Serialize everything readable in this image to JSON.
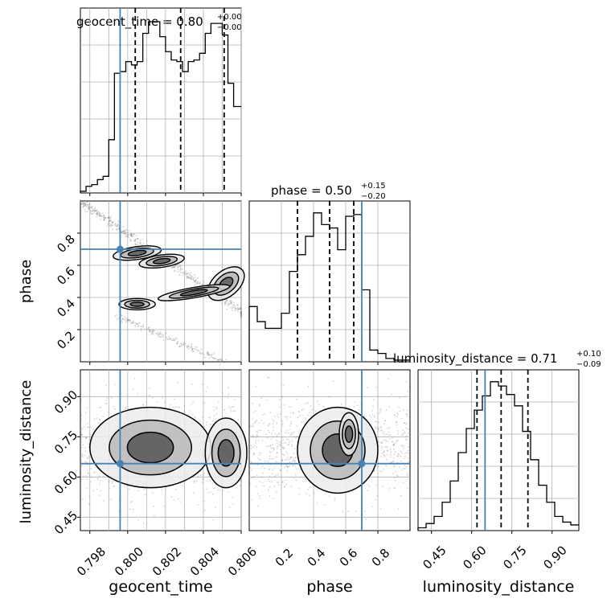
{
  "figure": {
    "kind": "corner-plot"
  },
  "chart_data": [
    {
      "id": "geocent_time_hist",
      "type": "histogram",
      "title_param": "geocent_time",
      "title_value": "0.80",
      "title_plus": "+0.00",
      "title_minus": "−0.00",
      "xlim": [
        0.7975,
        0.806
      ],
      "x": [
        0.7975,
        0.7978,
        0.7981,
        0.7984,
        0.7987,
        0.799,
        0.7993,
        0.7996,
        0.7999,
        0.8002,
        0.8005,
        0.8008,
        0.8011,
        0.8014,
        0.8017,
        0.802,
        0.8023,
        0.8026,
        0.8029,
        0.8032,
        0.8035,
        0.8038,
        0.8041,
        0.8044,
        0.8047,
        0.805,
        0.8053,
        0.8056,
        0.806
      ],
      "counts": [
        1,
        4,
        5,
        8,
        10,
        32,
        72,
        73,
        79,
        77,
        79,
        96,
        103,
        103,
        94,
        85,
        80,
        79,
        73,
        79,
        80,
        84,
        96,
        102,
        102,
        95,
        66,
        52
      ],
      "quantile_lines": [
        0.8004,
        0.8028,
        0.8051
      ],
      "truth": 0.7996,
      "grid": true
    },
    {
      "id": "phase_geocent_2d",
      "type": "2d-density-contour",
      "x_param": "geocent_time",
      "y_param": "phase",
      "xlim": [
        0.7975,
        0.806
      ],
      "ylim": [
        0.0,
        1.0
      ],
      "y_ticks": [
        "0.2",
        "0.4",
        "0.6",
        "0.8"
      ],
      "truth": {
        "x": 0.7996,
        "y": 0.7
      },
      "blobs": [
        {
          "x": 0.8005,
          "y": 0.676,
          "rx": 0.0008,
          "ry": 0.025,
          "rot": -8
        },
        {
          "x": 0.8018,
          "y": 0.626,
          "rx": 0.00075,
          "ry": 0.024,
          "rot": -8
        },
        {
          "x": 0.8052,
          "y": 0.486,
          "rx": 0.0007,
          "ry": 0.05,
          "rot": -40
        },
        {
          "x": 0.8005,
          "y": 0.358,
          "rx": 0.0006,
          "ry": 0.022,
          "rot": 0
        },
        {
          "x": 0.8035,
          "y": 0.43,
          "rx": 0.0012,
          "ry": 0.02,
          "rot": -10
        }
      ],
      "grid": true
    },
    {
      "id": "phase_hist",
      "type": "histogram",
      "title_param": "phase",
      "title_value": "0.50",
      "title_plus": "+0.15",
      "title_minus": "−0.20",
      "xlim": [
        0.0,
        1.0
      ],
      "x": [
        0.0,
        0.05,
        0.1,
        0.15,
        0.2,
        0.25,
        0.3,
        0.35,
        0.4,
        0.45,
        0.5,
        0.55,
        0.6,
        0.65,
        0.7,
        0.75,
        0.8,
        0.85,
        0.9,
        0.95,
        1.0
      ],
      "counts": [
        33,
        24,
        20,
        20,
        29,
        54,
        64,
        75,
        89,
        82,
        80,
        67,
        87,
        88,
        43,
        7,
        5,
        2,
        1,
        1
      ],
      "quantile_lines": [
        0.3,
        0.5,
        0.65
      ],
      "truth": 0.7,
      "grid": true
    },
    {
      "id": "lumdist_geocent_2d",
      "type": "2d-density-contour",
      "x_param": "geocent_time",
      "y_param": "luminosity_distance",
      "xlim": [
        0.7975,
        0.806
      ],
      "ylim": [
        0.4,
        1.0
      ],
      "y_ticks": [
        "0.45",
        "0.60",
        "0.75",
        "0.90"
      ],
      "x_ticks": [
        "0.798",
        "0.800",
        "0.802",
        "0.804",
        "0.806"
      ],
      "xlabel": "geocent_time",
      "ylabel": "luminosity_distance",
      "truth": {
        "x": 0.7996,
        "y": 0.65
      },
      "grid": true
    },
    {
      "id": "lumdist_phase_2d",
      "type": "2d-density-contour",
      "x_param": "phase",
      "y_param": "luminosity_distance",
      "xlim": [
        0.0,
        1.0
      ],
      "ylim": [
        0.4,
        1.0
      ],
      "x_ticks": [
        "0.2",
        "0.4",
        "0.6",
        "0.8"
      ],
      "xlabel": "phase",
      "truth": {
        "x": 0.7,
        "y": 0.65
      },
      "grid": true
    },
    {
      "id": "lumdist_hist",
      "type": "histogram",
      "title_param": "luminosity_distance",
      "title_value": "0.71",
      "title_plus": "+0.10",
      "title_minus": "−0.09",
      "xlim": [
        0.4,
        1.0
      ],
      "x": [
        0.4,
        0.43,
        0.46,
        0.49,
        0.52,
        0.55,
        0.58,
        0.61,
        0.64,
        0.67,
        0.7,
        0.73,
        0.76,
        0.79,
        0.82,
        0.85,
        0.88,
        0.91,
        0.94,
        0.97,
        1.0
      ],
      "counts": [
        2,
        5,
        10,
        20,
        35,
        55,
        72,
        85,
        95,
        105,
        102,
        96,
        88,
        70,
        50,
        32,
        20,
        10,
        6,
        4
      ],
      "quantile_lines": [
        0.62,
        0.71,
        0.81
      ],
      "truth": 0.65,
      "x_ticks": [
        "0.45",
        "0.60",
        "0.75",
        "0.90"
      ],
      "xlabel": "luminosity_distance",
      "grid": true
    }
  ],
  "colors": {
    "truth": "#4682b4",
    "axes": "#000000",
    "grid": "#b0b0b0",
    "points": "#000000"
  }
}
